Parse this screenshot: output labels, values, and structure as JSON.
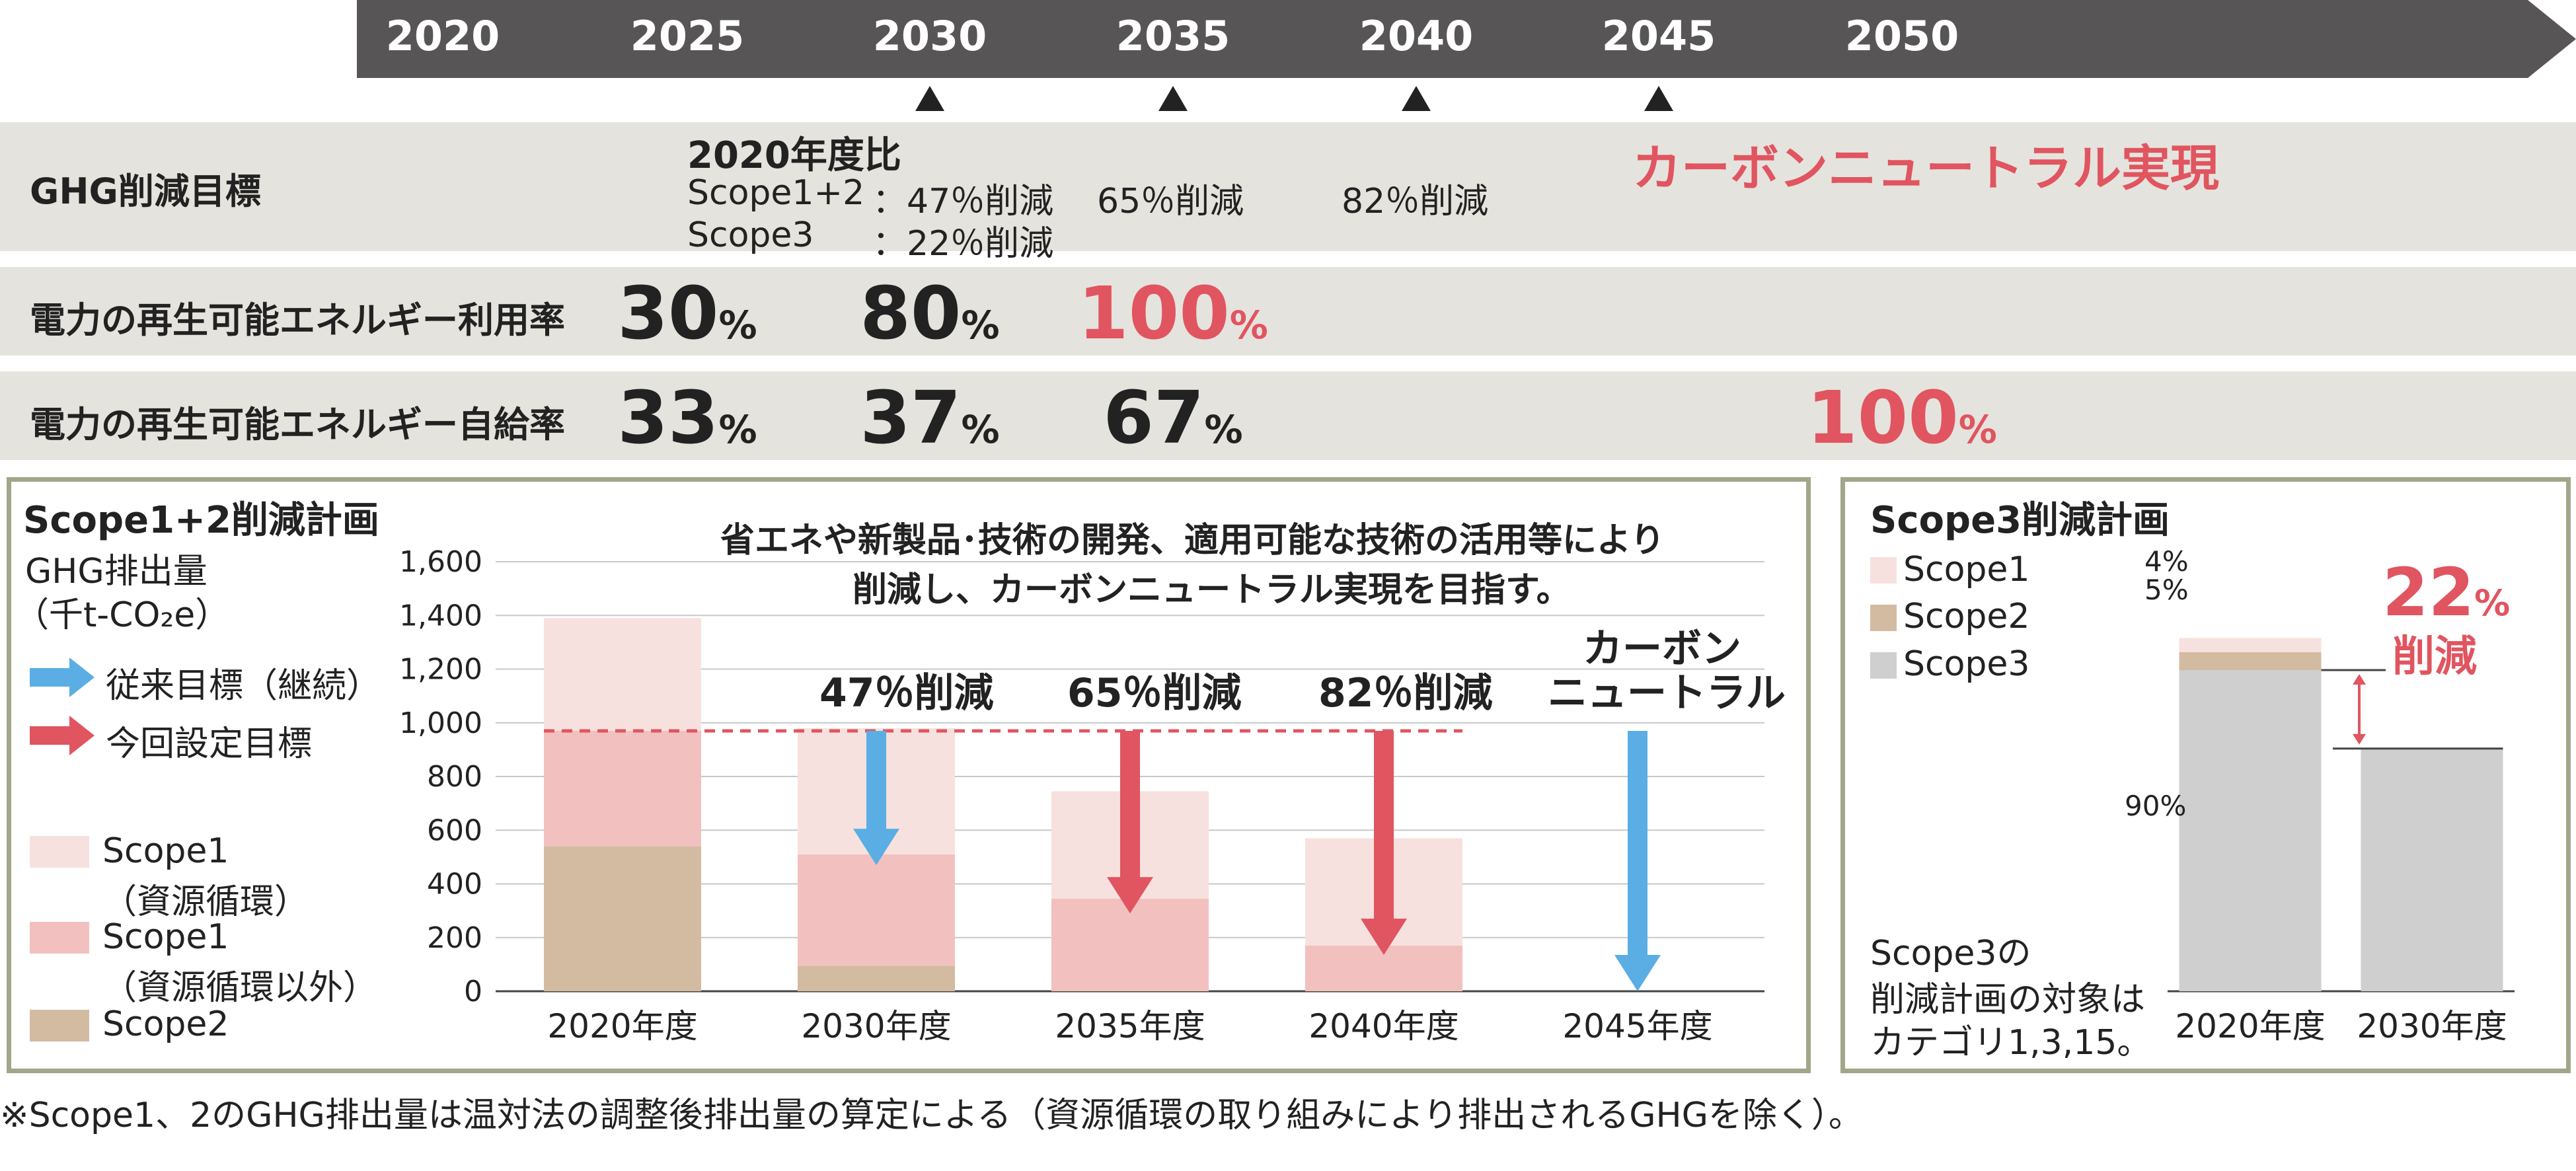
{
  "timeline": {
    "years": [
      "2020",
      "2025",
      "2030",
      "2035",
      "2040",
      "2045",
      "2050"
    ],
    "markers": [
      "2030",
      "2035",
      "2040",
      "2045"
    ]
  },
  "ghg": {
    "label": "GHG削減目標",
    "base": "2020年度比",
    "scope12_label": "Scope1+2",
    "scope12_2030": "：47％削減",
    "scope3_label": "Scope3",
    "scope3_2030": "：22％削減",
    "t2035": "65％削減",
    "t2040": "82％削減",
    "neutral": "カーボンニュートラル実現"
  },
  "renew_use": {
    "label": "電力の再生可能エネルギー利用率",
    "v2025": "30",
    "v2030": "80",
    "v2035": "100",
    "unit": "%"
  },
  "renew_self": {
    "label": "電力の再生可能エネルギー自給率",
    "v2025": "33",
    "v2030": "37",
    "v2035": "67",
    "v2050": "100",
    "unit": "%"
  },
  "scope12_panel": {
    "title": "Scope1+2削減計画",
    "unit_line1": "GHG排出量",
    "unit_line2": "（千t-CO₂e）",
    "legend_prev": "従来目標（継続）",
    "legend_new": "今回設定目標",
    "legend_s1a_1": "Scope1",
    "legend_s1a_2": "（資源循環）",
    "legend_s1b_1": "Scope1",
    "legend_s1b_2": "（資源循環以外）",
    "legend_s2": "Scope2",
    "note_line1": "省エネや新製品･技術の開発、適用可能な技術の活用等により",
    "note_line2": "削減し、カーボンニュートラル実現を目指す。",
    "label_47": "47％削減",
    "label_65": "65％削減",
    "label_82": "82％削減",
    "label_cn1": "カーボン",
    "label_cn2": "ニュートラル"
  },
  "scope3_panel": {
    "title": "Scope3削減計画",
    "legend": [
      "Scope1",
      "Scope2",
      "Scope3"
    ],
    "pct_s1": "4%",
    "pct_s2": "5%",
    "pct_s3": "90%",
    "reduction_pct": "22",
    "reduction_unit": "%",
    "reduction_word": "削減",
    "note_line1": "Scope3の",
    "note_line2": "削減計画の対象は",
    "note_line3": "カテゴリ1,3,15。"
  },
  "footnote": "※Scope1、2のGHG排出量は温対法の調整後排出量の算定による（資源循環の取り組みにより排出されるGHGを除く）。",
  "colors": {
    "s1_recycle": "#f7e1de",
    "s1_other": "#f2c1bf",
    "s2": "#d3bba2",
    "s3": "#cfcfcf",
    "red": "#e05560",
    "blue": "#5aaee3",
    "band": "#e5e3dd",
    "frame": "#a2a68a",
    "timeline": "#585556"
  },
  "chart_data": [
    {
      "type": "bar",
      "title": "Scope1+2削減計画",
      "ylabel": "GHG排出量（千t-CO₂e）",
      "ylim": [
        0,
        1600
      ],
      "yticks": [
        "0",
        "200",
        "400",
        "600",
        "800",
        "1,000",
        "1,200",
        "1,400",
        "1,600"
      ],
      "categories": [
        "2020年度",
        "2030年度",
        "2035年度",
        "2040年度",
        "2045年度"
      ],
      "series": [
        {
          "name": "Scope2",
          "values": [
            540,
            95,
            0,
            0,
            0
          ]
        },
        {
          "name": "Scope1（資源循環以外）",
          "values": [
            430,
            415,
            345,
            170,
            0
          ]
        },
        {
          "name": "Scope1（資源循環）",
          "values": [
            420,
            470,
            400,
            400,
            0
          ]
        }
      ],
      "reference_line": 970
    },
    {
      "type": "bar",
      "title": "Scope3削減計画",
      "categories": [
        "2020年度",
        "2030年度"
      ],
      "series": [
        {
          "name": "Scope3",
          "values": [
            90,
            68
          ]
        },
        {
          "name": "Scope2",
          "values": [
            5,
            0
          ]
        },
        {
          "name": "Scope1",
          "values": [
            4,
            0
          ]
        }
      ]
    }
  ]
}
